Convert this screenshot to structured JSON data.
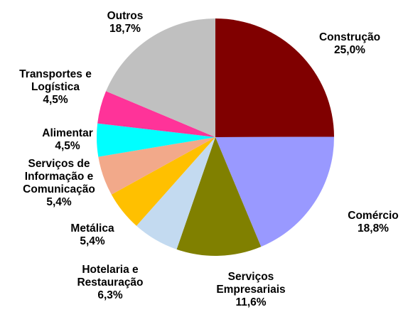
{
  "chart_data": {
    "type": "pie",
    "categories": [
      "Construção",
      "Comércio",
      "Serviços\nEmpresariais",
      "Hotelaria e\nRestauração",
      "Metálica",
      "Serviços de\nInformação e\nComunicação",
      "Alimentar",
      "Transportes e\nLogística",
      "Outros"
    ],
    "values": [
      25.0,
      18.8,
      11.6,
      6.3,
      5.4,
      5.4,
      4.5,
      4.5,
      18.7
    ],
    "value_labels": [
      "25,0%",
      "18,8%",
      "11,6%",
      "6,3%",
      "5,4%",
      "5,4%",
      "4,5%",
      "4,5%",
      "18,7%"
    ],
    "colors": [
      "#800000",
      "#9999ff",
      "#808000",
      "#c3daf0",
      "#ffc000",
      "#f2a98a",
      "#00ffff",
      "#ff3399",
      "#c0c0c0"
    ]
  }
}
